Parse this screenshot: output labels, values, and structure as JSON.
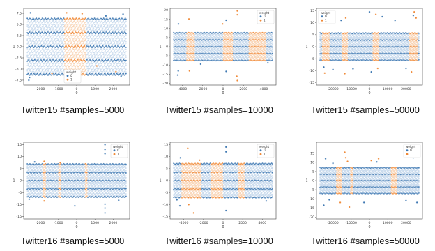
{
  "colors": {
    "class0": "#3e78b2",
    "class1": "#f08a38",
    "band0": "#c5d8ec",
    "band1": "#f8d3b3"
  },
  "legend_title": "weight",
  "chart_data": [
    {
      "type": "scatter",
      "caption": "Twitter15 #samples=5000",
      "xlabel": "0",
      "ylabel": "1",
      "xlim": [
        -2900,
        2900
      ],
      "ylim": [
        -8.6,
        8.6
      ],
      "xticks": [
        -2000,
        -1000,
        0,
        1000,
        2000
      ],
      "yticks": [
        -7.5,
        -5.0,
        -2.5,
        0.0,
        2.5,
        5.0,
        7.5
      ],
      "ytick_labels": [
        "-7.5",
        "-5.0",
        "-2.5",
        "0.0",
        "2.5",
        "5.0",
        "7.5"
      ],
      "legend_position": "bottom-center",
      "series": [
        {
          "name": "0"
        },
        {
          "name": "1"
        }
      ],
      "band_amplitude": 6.2,
      "weight1_ranges": [
        [
          -700,
          500
        ]
      ],
      "outliers0": [
        [
          -2620,
          -7.5
        ],
        [
          -2580,
          -6.9
        ],
        [
          -2530,
          7.6
        ],
        [
          2430,
          -6.6
        ],
        [
          2540,
          7.3
        ],
        [
          -1800,
          -6.2
        ],
        [
          1600,
          6.9
        ]
      ],
      "outliers1": [
        [
          -550,
          7.6
        ],
        [
          300,
          7.4
        ],
        [
          -200,
          -7.2
        ],
        [
          2150,
          -5.6
        ],
        [
          -1350,
          -6.0
        ],
        [
          1100,
          -4.3
        ]
      ]
    },
    {
      "type": "scatter",
      "caption": "Twitter15 #samples=10000",
      "xlabel": "0",
      "ylabel": "1",
      "xlim": [
        -5200,
        5200
      ],
      "ylim": [
        -21,
        21
      ],
      "xticks": [
        -4000,
        -2000,
        0,
        2000,
        4000
      ],
      "yticks": [
        -20,
        -15,
        -10,
        -5,
        0,
        5,
        10,
        15,
        20
      ],
      "ytick_labels": [
        "-20",
        "-15",
        "-10",
        "-5",
        "0",
        "5",
        "10",
        "15",
        "20"
      ],
      "legend_position": "top-right",
      "series": [
        {
          "name": "0"
        },
        {
          "name": "1"
        }
      ],
      "band_amplitude": 7.5,
      "weight1_ranges": [
        [
          -3600,
          -2800
        ],
        [
          0,
          1000
        ],
        [
          2500,
          4200
        ]
      ],
      "outliers0": [
        [
          -4450,
          -15.5
        ],
        [
          -4400,
          -13.2
        ],
        [
          -4380,
          12.5
        ],
        [
          -2200,
          -9.5
        ],
        [
          300,
          14.5
        ],
        [
          300,
          -13.5
        ],
        [
          4400,
          -8.8
        ]
      ],
      "outliers1": [
        [
          -3350,
          15.2
        ],
        [
          -3300,
          -13.2
        ],
        [
          1400,
          19.6
        ],
        [
          1400,
          17.5
        ],
        [
          1400,
          -18.5
        ],
        [
          1350,
          -16.2
        ],
        [
          -50,
          12.5
        ]
      ]
    },
    {
      "type": "scatter",
      "caption": "Twitter15 #samples=50000",
      "xlabel": "0",
      "ylabel": "1",
      "xlim": [
        -29000,
        29000
      ],
      "ylim": [
        -16,
        16
      ],
      "xticks": [
        -20000,
        -10000,
        0,
        10000,
        20000
      ],
      "yticks": [
        -15,
        -10,
        -5,
        0,
        5,
        10,
        15
      ],
      "ytick_labels": [
        "-15",
        "-10",
        "-5",
        "0",
        "5",
        "10",
        "15"
      ],
      "legend_position": "top-left",
      "series": [
        {
          "name": "0"
        },
        {
          "name": "1"
        }
      ],
      "band_amplitude": 5.6,
      "weight1_ranges": [
        [
          -26000,
          -22000
        ],
        [
          -15000,
          -12000
        ],
        [
          2000,
          5500
        ],
        [
          22000,
          26500
        ]
      ],
      "outliers0": [
        [
          -25000,
          -8.5
        ],
        [
          -23000,
          10.2
        ],
        [
          -20000,
          -9.5
        ],
        [
          -15500,
          11.0
        ],
        [
          -9000,
          -9.2
        ],
        [
          0,
          14.5
        ],
        [
          1000,
          -10.5
        ],
        [
          7000,
          12.5
        ],
        [
          14000,
          11.0
        ],
        [
          20000,
          -9.0
        ],
        [
          24000,
          13.0
        ]
      ],
      "outliers1": [
        [
          -25000,
          12.5
        ],
        [
          -24500,
          -11.0
        ],
        [
          -13500,
          -11.2
        ],
        [
          -13000,
          12.0
        ],
        [
          3500,
          13.5
        ],
        [
          4500,
          -9.0
        ],
        [
          23000,
          -10.5
        ],
        [
          24500,
          14.5
        ],
        [
          25500,
          12.0
        ]
      ]
    },
    {
      "type": "scatter",
      "caption": "Twitter16 #samples=5000",
      "xlabel": "0",
      "ylabel": "1",
      "xlim": [
        -2900,
        2900
      ],
      "ylim": [
        -16,
        16
      ],
      "xticks": [
        -2000,
        -1000,
        0,
        1000,
        2000
      ],
      "yticks": [
        -15,
        -10,
        -5,
        0,
        5,
        10,
        15
      ],
      "ytick_labels": [
        "-15",
        "-10",
        "-5",
        "0",
        "5",
        "10",
        "15"
      ],
      "legend_position": "top-right",
      "series": [
        {
          "name": "0"
        },
        {
          "name": "1"
        }
      ],
      "band_amplitude": 6.8,
      "weight1_ranges": [
        [
          -1850,
          -1700
        ],
        [
          -1000,
          -850
        ],
        [
          450,
          600
        ]
      ],
      "outliers0": [
        [
          -2600,
          -7.8
        ],
        [
          1550,
          15.0
        ],
        [
          1550,
          13.0
        ],
        [
          1550,
          11.2
        ],
        [
          1550,
          -13.5
        ],
        [
          1550,
          -11.5
        ],
        [
          1550,
          -9.8
        ],
        [
          -100,
          -10.5
        ],
        [
          -2300,
          7.8
        ],
        [
          2300,
          -8.2
        ]
      ],
      "outliers1": [
        [
          -1780,
          8.0
        ],
        [
          -1780,
          -8.5
        ],
        [
          -900,
          7.5
        ]
      ]
    },
    {
      "type": "scatter",
      "caption": "Twitter16 #samples=10000",
      "xlabel": "0",
      "ylabel": "1",
      "xlim": [
        -5400,
        5400
      ],
      "ylim": [
        -16,
        16
      ],
      "xticks": [
        -4000,
        -2000,
        0,
        2000,
        4000
      ],
      "yticks": [
        -15,
        -10,
        -5,
        0,
        5,
        10,
        15
      ],
      "ytick_labels": [
        "-15",
        "-10",
        "-5",
        "0",
        "5",
        "10",
        "15"
      ],
      "legend_position": "top-right",
      "series": [
        {
          "name": "0"
        },
        {
          "name": "1"
        }
      ],
      "band_amplitude": 7.0,
      "weight1_ranges": [
        [
          -4200,
          -2200
        ],
        [
          -1300,
          0
        ],
        [
          1500,
          2200
        ]
      ],
      "outliers0": [
        [
          -4400,
          -10.5
        ],
        [
          -4350,
          9.5
        ],
        [
          300,
          14.0
        ],
        [
          300,
          12.0
        ],
        [
          300,
          -12.5
        ],
        [
          -4700,
          -8.0
        ],
        [
          4400,
          -8.5
        ]
      ],
      "outliers1": [
        [
          -3600,
          13.5
        ],
        [
          -3500,
          -10.0
        ],
        [
          -2400,
          8.5
        ],
        [
          -3000,
          -13.5
        ]
      ]
    },
    {
      "type": "scatter",
      "caption": "Twitter16 #samples=50000",
      "xlabel": "0",
      "ylabel": "1",
      "xlim": [
        -29000,
        29000
      ],
      "ylim": [
        -21,
        21
      ],
      "xticks": [
        -20000,
        -10000,
        0,
        10000,
        20000
      ],
      "yticks": [
        -20,
        -15,
        -10,
        -5,
        0,
        5,
        10,
        15
      ],
      "ytick_labels": [
        "-20",
        "-15",
        "-10",
        "-5",
        "0",
        "5",
        "10",
        "15"
      ],
      "legend_position": "top-right",
      "series": [
        {
          "name": "0"
        },
        {
          "name": "1"
        }
      ],
      "band_amplitude": 7.0,
      "weight1_ranges": [
        [
          -18000,
          -15000
        ],
        [
          -10500,
          -9000
        ],
        [
          12000,
          15000
        ]
      ],
      "outliers0": [
        [
          -25000,
          -13.5
        ],
        [
          -24000,
          12.0
        ],
        [
          -22000,
          -10.5
        ],
        [
          -20000,
          9.5
        ],
        [
          -3000,
          -12.0
        ],
        [
          4000,
          10.2
        ],
        [
          20000,
          -11.0
        ],
        [
          24000,
          12.5
        ],
        [
          26000,
          -12.0
        ]
      ],
      "outliers1": [
        [
          -13500,
          15.5
        ],
        [
          -13000,
          12.5
        ],
        [
          -16000,
          -12.0
        ],
        [
          -11000,
          -14.5
        ],
        [
          -12000,
          10.5
        ],
        [
          1000,
          11.0
        ],
        [
          5000,
          12.0
        ]
      ]
    }
  ]
}
